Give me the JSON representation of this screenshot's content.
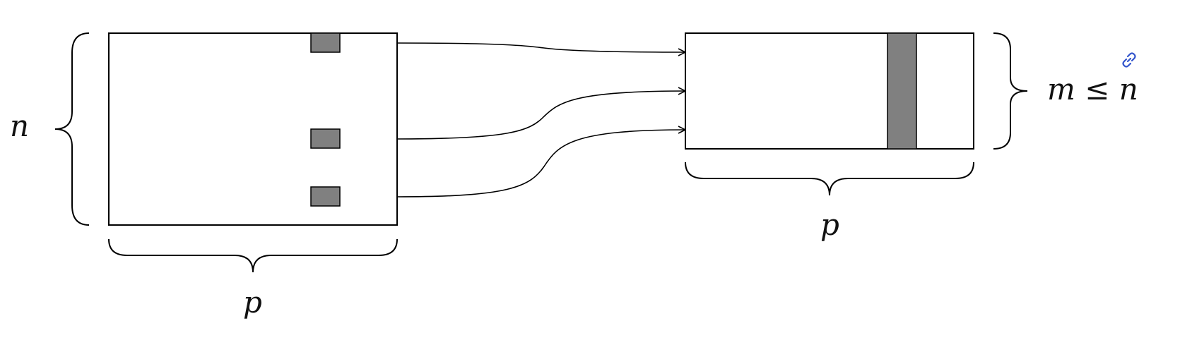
{
  "diagram": {
    "label_n": "n",
    "label_p_left": "p",
    "label_p_right": "p",
    "label_m": "m",
    "label_le": "≤",
    "label_n_right": "n"
  },
  "colors": {
    "stroke": "#000000",
    "fill_gray": "#808080",
    "link_icon": "#3355cc"
  },
  "icons": {
    "link": "link-icon"
  }
}
